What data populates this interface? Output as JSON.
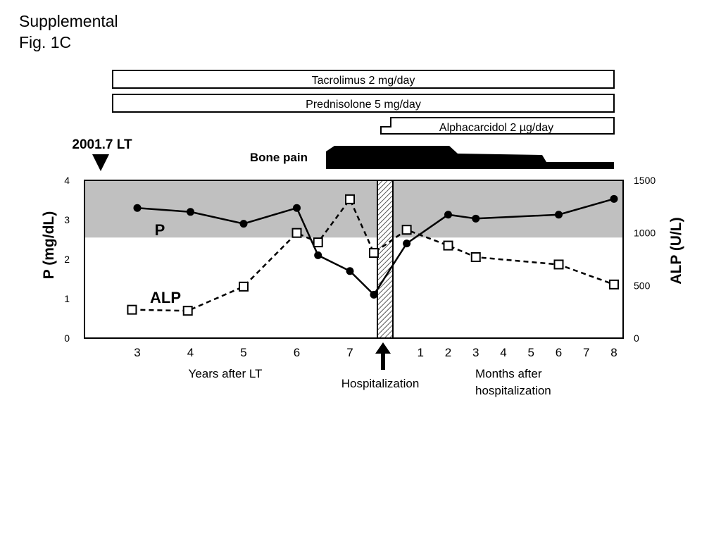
{
  "figure": {
    "title_line1": "Supplemental",
    "title_line2": "Fig. 1C"
  },
  "treatments": [
    {
      "label": "Tacrolimus  2 mg/day",
      "start_x": 2.3,
      "end": "8"
    },
    {
      "label": "Prednisolone 5 mg/day",
      "start_x": 2.3,
      "end": "8"
    },
    {
      "label": "Alphacarcidol 2 µg/day",
      "start_x": 7.15,
      "end": "8"
    }
  ],
  "events": {
    "lt_label": "2001.7 LT",
    "bone_pain_label": "Bone pain",
    "hospitalization_label": "Hospitalization"
  },
  "chart_data": {
    "type": "line",
    "y_left": {
      "label": "P  (mg/dL)",
      "range": [
        0,
        4
      ],
      "ticks": [
        "0",
        "1",
        "2",
        "3",
        "4"
      ]
    },
    "y_right": {
      "label": "ALP  (U/L)",
      "range": [
        0,
        1500
      ],
      "ticks": [
        "0",
        "500",
        "1000",
        "1500"
      ]
    },
    "x_left": {
      "label": "Years after LT",
      "ticks": [
        "3",
        "4",
        "5",
        "6",
        "7"
      ]
    },
    "x_right": {
      "label": "Months after hospitalization",
      "label_lines": [
        "Months after",
        "hospitalization"
      ],
      "ticks": [
        "1",
        "2",
        "3",
        "4",
        "5",
        "6",
        "7",
        "8"
      ]
    },
    "normal_range_P": [
      2.55,
      4
    ],
    "annotations": {
      "p_label": "P",
      "alp_label": "ALP"
    },
    "series": [
      {
        "name": "P",
        "axis": "left",
        "style": "solid-filled-circle",
        "points": [
          {
            "x": "3",
            "y": 3.3
          },
          {
            "x": "4",
            "y": 3.2
          },
          {
            "x": "5",
            "y": 2.9
          },
          {
            "x": "6",
            "y": 3.3
          },
          {
            "x": "6.4",
            "y": 2.1
          },
          {
            "x": "7",
            "y": 1.7
          },
          {
            "x": "7.45",
            "y": 1.1
          },
          {
            "x": "m0.5",
            "y": 2.4
          },
          {
            "x": "m2",
            "y": 3.13
          },
          {
            "x": "m3",
            "y": 3.03
          },
          {
            "x": "m6",
            "y": 3.13
          },
          {
            "x": "m8",
            "y": 3.53
          }
        ]
      },
      {
        "name": "ALP",
        "axis": "right",
        "style": "dashed-open-square",
        "points": [
          {
            "x": "2.9",
            "y": 270
          },
          {
            "x": "3.95",
            "y": 260
          },
          {
            "x": "5",
            "y": 490
          },
          {
            "x": "6",
            "y": 1000
          },
          {
            "x": "6.4",
            "y": 910
          },
          {
            "x": "7",
            "y": 1320
          },
          {
            "x": "7.45",
            "y": 810
          },
          {
            "x": "m0.5",
            "y": 1030
          },
          {
            "x": "m2",
            "y": 880
          },
          {
            "x": "m3",
            "y": 770
          },
          {
            "x": "m6",
            "y": 700
          },
          {
            "x": "m8",
            "y": 510
          }
        ]
      }
    ]
  }
}
